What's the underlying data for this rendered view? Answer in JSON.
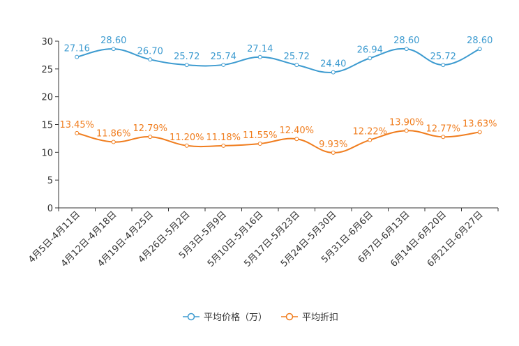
{
  "chart_data": {
    "type": "line",
    "title": "",
    "xlabel": "",
    "ylabel": "",
    "ylim": [
      0,
      30
    ],
    "yticks": [
      0,
      5,
      10,
      15,
      20,
      25,
      30
    ],
    "legend_position": "bottom-center",
    "categories": [
      "4月5日-4月11日",
      "4月12日-4月18日",
      "4月19日-4月25日",
      "4月26日-5月2日",
      "5月3日-5月9日",
      "5月10日-5月16日",
      "5月17日-5月23日",
      "5月24日-5月30日",
      "5月31日-6月6日",
      "6月7日-6月13日",
      "6月14日-6月20日",
      "6月21日-6月27日"
    ],
    "series": [
      {
        "name": "平均价格（万）",
        "color": "#3d9bd0",
        "values": [
          27.16,
          28.6,
          26.7,
          25.72,
          25.74,
          27.14,
          25.72,
          24.4,
          26.94,
          28.6,
          25.72,
          28.6
        ],
        "labels": [
          "27.16",
          "28.60",
          "26.70",
          "25.72",
          "25.74",
          "27.14",
          "25.72",
          "24.40",
          "26.94",
          "28.60",
          "25.72",
          "28.60"
        ]
      },
      {
        "name": "平均折扣",
        "color": "#f07d1e",
        "values": [
          13.45,
          11.86,
          12.79,
          11.2,
          11.18,
          11.55,
          12.4,
          9.93,
          12.22,
          13.9,
          12.77,
          13.63
        ],
        "labels": [
          "13.45%",
          "11.86%",
          "12.79%",
          "11.20%",
          "11.18%",
          "11.55%",
          "12.40%",
          "9.93%",
          "12.22%",
          "13.90%",
          "12.77%",
          "13.63%"
        ]
      }
    ]
  }
}
